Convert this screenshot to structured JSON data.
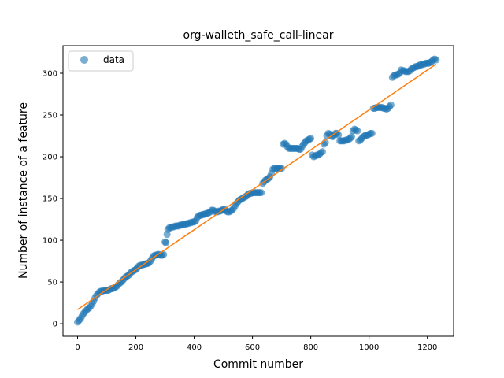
{
  "chart_data": {
    "type": "scatter",
    "title": "org-walleth_safe_call-linear",
    "xlabel": "Commit number",
    "ylabel": "Number of instance of a feature",
    "xlim": [
      -50,
      1290
    ],
    "ylim": [
      -15,
      333
    ],
    "xticks": [
      0,
      200,
      400,
      600,
      800,
      1000,
      1200
    ],
    "yticks": [
      0,
      50,
      100,
      150,
      200,
      250,
      300
    ],
    "grid": false,
    "legend": {
      "position": "top-left",
      "entries": [
        "data"
      ]
    },
    "colors": {
      "data": "#1f77b4",
      "fit": "#ff7f0e"
    },
    "series": [
      {
        "name": "data",
        "kind": "scatter",
        "points": [
          [
            0,
            2
          ],
          [
            5,
            4
          ],
          [
            10,
            6
          ],
          [
            15,
            9
          ],
          [
            20,
            12
          ],
          [
            25,
            14
          ],
          [
            30,
            16
          ],
          [
            35,
            18
          ],
          [
            40,
            19
          ],
          [
            45,
            21
          ],
          [
            50,
            24
          ],
          [
            55,
            27
          ],
          [
            60,
            31
          ],
          [
            65,
            34
          ],
          [
            70,
            36
          ],
          [
            75,
            38
          ],
          [
            80,
            39
          ],
          [
            85,
            39
          ],
          [
            90,
            40
          ],
          [
            95,
            40
          ],
          [
            100,
            40
          ],
          [
            105,
            40
          ],
          [
            110,
            41
          ],
          [
            115,
            42
          ],
          [
            120,
            42
          ],
          [
            125,
            43
          ],
          [
            130,
            44
          ],
          [
            135,
            45
          ],
          [
            140,
            47
          ],
          [
            145,
            49
          ],
          [
            150,
            50
          ],
          [
            155,
            52
          ],
          [
            160,
            54
          ],
          [
            165,
            56
          ],
          [
            170,
            57
          ],
          [
            175,
            58
          ],
          [
            180,
            60
          ],
          [
            185,
            62
          ],
          [
            190,
            63
          ],
          [
            195,
            64
          ],
          [
            200,
            65
          ],
          [
            205,
            67
          ],
          [
            210,
            69
          ],
          [
            215,
            70
          ],
          [
            220,
            70
          ],
          [
            225,
            71
          ],
          [
            230,
            71
          ],
          [
            235,
            72
          ],
          [
            240,
            72
          ],
          [
            245,
            73
          ],
          [
            250,
            75
          ],
          [
            255,
            78
          ],
          [
            260,
            81
          ],
          [
            265,
            82
          ],
          [
            270,
            82
          ],
          [
            275,
            83
          ],
          [
            280,
            83
          ],
          [
            285,
            82
          ],
          [
            290,
            82
          ],
          [
            295,
            83
          ],
          [
            300,
            98
          ],
          [
            303,
            97
          ],
          [
            307,
            107
          ],
          [
            310,
            113
          ],
          [
            315,
            115
          ],
          [
            320,
            115
          ],
          [
            325,
            116
          ],
          [
            330,
            116
          ],
          [
            335,
            117
          ],
          [
            340,
            117
          ],
          [
            345,
            117
          ],
          [
            350,
            118
          ],
          [
            355,
            118
          ],
          [
            360,
            119
          ],
          [
            365,
            119
          ],
          [
            370,
            119
          ],
          [
            375,
            120
          ],
          [
            380,
            120
          ],
          [
            385,
            121
          ],
          [
            390,
            121
          ],
          [
            395,
            122
          ],
          [
            400,
            122
          ],
          [
            405,
            123
          ],
          [
            410,
            127
          ],
          [
            415,
            129
          ],
          [
            420,
            130
          ],
          [
            425,
            130
          ],
          [
            430,
            131
          ],
          [
            435,
            131
          ],
          [
            440,
            132
          ],
          [
            445,
            132
          ],
          [
            450,
            133
          ],
          [
            455,
            134
          ],
          [
            460,
            136
          ],
          [
            465,
            136
          ],
          [
            470,
            135
          ],
          [
            475,
            134
          ],
          [
            480,
            134
          ],
          [
            485,
            135
          ],
          [
            490,
            135
          ],
          [
            495,
            136
          ],
          [
            500,
            137
          ],
          [
            505,
            137
          ],
          [
            510,
            135
          ],
          [
            515,
            134
          ],
          [
            520,
            134
          ],
          [
            525,
            135
          ],
          [
            530,
            136
          ],
          [
            535,
            138
          ],
          [
            540,
            141
          ],
          [
            545,
            144
          ],
          [
            550,
            146
          ],
          [
            555,
            148
          ],
          [
            560,
            149
          ],
          [
            565,
            150
          ],
          [
            570,
            151
          ],
          [
            575,
            152
          ],
          [
            580,
            153
          ],
          [
            585,
            155
          ],
          [
            590,
            156
          ],
          [
            595,
            156
          ],
          [
            600,
            157
          ],
          [
            605,
            157
          ],
          [
            610,
            157
          ],
          [
            615,
            157
          ],
          [
            620,
            157
          ],
          [
            625,
            157
          ],
          [
            630,
            157
          ],
          [
            635,
            168
          ],
          [
            640,
            170
          ],
          [
            645,
            172
          ],
          [
            650,
            173
          ],
          [
            655,
            174
          ],
          [
            660,
            176
          ],
          [
            665,
            180
          ],
          [
            670,
            185
          ],
          [
            675,
            186
          ],
          [
            680,
            186
          ],
          [
            685,
            186
          ],
          [
            690,
            186
          ],
          [
            695,
            186
          ],
          [
            700,
            186
          ],
          [
            705,
            215
          ],
          [
            710,
            216
          ],
          [
            715,
            215
          ],
          [
            720,
            212
          ],
          [
            725,
            210
          ],
          [
            730,
            210
          ],
          [
            735,
            210
          ],
          [
            740,
            210
          ],
          [
            745,
            210
          ],
          [
            750,
            210
          ],
          [
            755,
            210
          ],
          [
            760,
            209
          ],
          [
            765,
            209
          ],
          [
            770,
            212
          ],
          [
            775,
            215
          ],
          [
            780,
            217
          ],
          [
            785,
            219
          ],
          [
            790,
            220
          ],
          [
            795,
            221
          ],
          [
            800,
            222
          ],
          [
            805,
            202
          ],
          [
            810,
            200
          ],
          [
            815,
            201
          ],
          [
            820,
            202
          ],
          [
            825,
            202
          ],
          [
            830,
            203
          ],
          [
            835,
            205
          ],
          [
            840,
            206
          ],
          [
            845,
            215
          ],
          [
            850,
            217
          ],
          [
            855,
            225
          ],
          [
            860,
            228
          ],
          [
            865,
            227
          ],
          [
            870,
            225
          ],
          [
            875,
            224
          ],
          [
            880,
            226
          ],
          [
            885,
            228
          ],
          [
            890,
            228
          ],
          [
            895,
            226
          ],
          [
            900,
            219
          ],
          [
            905,
            219
          ],
          [
            910,
            219
          ],
          [
            915,
            219
          ],
          [
            920,
            220
          ],
          [
            925,
            220
          ],
          [
            930,
            221
          ],
          [
            935,
            222
          ],
          [
            940,
            224
          ],
          [
            945,
            231
          ],
          [
            950,
            233
          ],
          [
            955,
            232
          ],
          [
            960,
            231
          ],
          [
            965,
            219
          ],
          [
            970,
            220
          ],
          [
            975,
            222
          ],
          [
            980,
            224
          ],
          [
            985,
            225
          ],
          [
            990,
            226
          ],
          [
            995,
            226
          ],
          [
            1000,
            227
          ],
          [
            1005,
            228
          ],
          [
            1010,
            228
          ],
          [
            1015,
            258
          ],
          [
            1020,
            258
          ],
          [
            1025,
            259
          ],
          [
            1030,
            259
          ],
          [
            1035,
            259
          ],
          [
            1040,
            259
          ],
          [
            1045,
            259
          ],
          [
            1050,
            258
          ],
          [
            1055,
            258
          ],
          [
            1060,
            257
          ],
          [
            1065,
            258
          ],
          [
            1070,
            260
          ],
          [
            1075,
            262
          ],
          [
            1080,
            295
          ],
          [
            1085,
            297
          ],
          [
            1090,
            298
          ],
          [
            1095,
            298
          ],
          [
            1100,
            299
          ],
          [
            1105,
            300
          ],
          [
            1110,
            304
          ],
          [
            1115,
            303
          ],
          [
            1120,
            303
          ],
          [
            1125,
            302
          ],
          [
            1130,
            302
          ],
          [
            1135,
            302
          ],
          [
            1140,
            303
          ],
          [
            1145,
            305
          ],
          [
            1150,
            306
          ],
          [
            1155,
            307
          ],
          [
            1160,
            308
          ],
          [
            1165,
            308
          ],
          [
            1170,
            309
          ],
          [
            1175,
            310
          ],
          [
            1180,
            310
          ],
          [
            1185,
            311
          ],
          [
            1190,
            311
          ],
          [
            1195,
            312
          ],
          [
            1200,
            312
          ],
          [
            1205,
            312
          ],
          [
            1210,
            313
          ],
          [
            1215,
            314
          ],
          [
            1220,
            316
          ],
          [
            1225,
            317
          ],
          [
            1230,
            316
          ]
        ]
      },
      {
        "name": "",
        "kind": "line",
        "points": [
          [
            0,
            17
          ],
          [
            1230,
            311
          ]
        ]
      }
    ]
  }
}
